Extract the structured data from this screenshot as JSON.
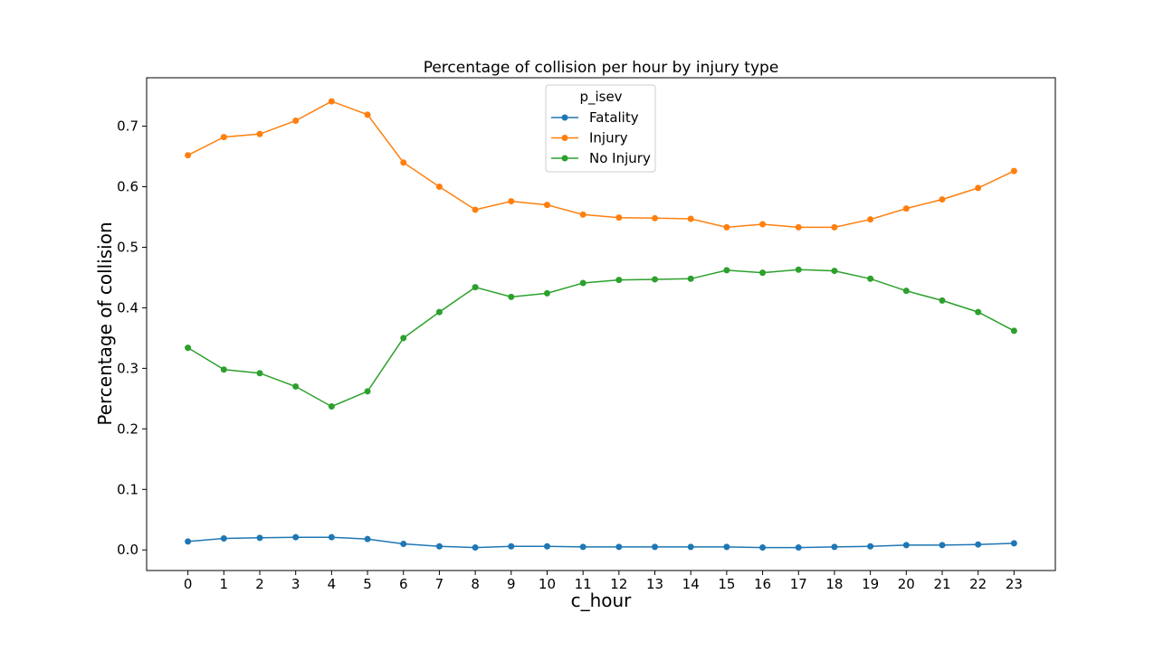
{
  "chart_data": {
    "type": "line",
    "title": "Percentage of collision per hour by injury type",
    "xlabel": "c_hour",
    "ylabel": "Percentage of collision",
    "x": [
      0,
      1,
      2,
      3,
      4,
      5,
      6,
      7,
      8,
      9,
      10,
      11,
      12,
      13,
      14,
      15,
      16,
      17,
      18,
      19,
      20,
      21,
      22,
      23
    ],
    "xticks": [
      "0",
      "1",
      "2",
      "3",
      "4",
      "5",
      "6",
      "7",
      "8",
      "9",
      "10",
      "11",
      "12",
      "13",
      "14",
      "15",
      "16",
      "17",
      "18",
      "19",
      "20",
      "21",
      "22",
      "23"
    ],
    "yticks": [
      "0.0",
      "0.1",
      "0.2",
      "0.3",
      "0.4",
      "0.5",
      "0.6",
      "0.7"
    ],
    "ylim": [
      -0.034,
      0.78
    ],
    "xlim": [
      -1.15,
      24.15
    ],
    "legend": {
      "title": "p_isev",
      "placement": "upper center"
    },
    "grid": false,
    "series": [
      {
        "name": "Fatality",
        "color": "#1f77b4",
        "values": [
          0.014,
          0.019,
          0.02,
          0.021,
          0.021,
          0.018,
          0.01,
          0.006,
          0.004,
          0.006,
          0.006,
          0.005,
          0.005,
          0.005,
          0.005,
          0.005,
          0.004,
          0.004,
          0.005,
          0.006,
          0.008,
          0.008,
          0.009,
          0.011
        ]
      },
      {
        "name": "Injury",
        "color": "#ff7f0e",
        "values": [
          0.652,
          0.682,
          0.687,
          0.709,
          0.741,
          0.719,
          0.64,
          0.6,
          0.562,
          0.576,
          0.57,
          0.554,
          0.549,
          0.548,
          0.547,
          0.533,
          0.538,
          0.533,
          0.533,
          0.546,
          0.564,
          0.579,
          0.598,
          0.626
        ]
      },
      {
        "name": "No Injury",
        "color": "#2ca02c",
        "values": [
          0.334,
          0.298,
          0.292,
          0.27,
          0.237,
          0.262,
          0.35,
          0.393,
          0.434,
          0.418,
          0.424,
          0.441,
          0.446,
          0.447,
          0.448,
          0.462,
          0.458,
          0.463,
          0.461,
          0.448,
          0.428,
          0.412,
          0.393,
          0.362
        ]
      }
    ]
  }
}
